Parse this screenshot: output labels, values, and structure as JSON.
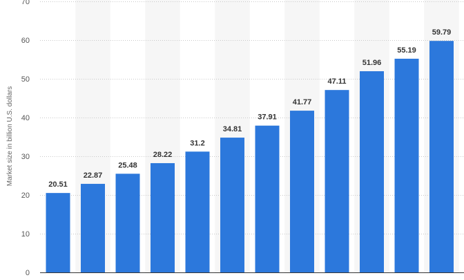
{
  "chart_data": {
    "type": "bar",
    "categories": [
      "",
      "",
      "",
      "",
      "",
      "",
      "",
      "",
      "",
      "",
      "",
      ""
    ],
    "values": [
      20.51,
      22.87,
      25.48,
      28.22,
      31.2,
      34.81,
      37.91,
      41.77,
      47.11,
      51.96,
      55.19,
      59.79
    ],
    "value_labels": [
      "20.51",
      "22.87",
      "25.48",
      "28.22",
      "31.2",
      "34.81",
      "37.91",
      "41.77",
      "47.11",
      "51.96",
      "55.19",
      "59.79"
    ],
    "title": "",
    "xlabel": "",
    "ylabel": "Market size in billion U.S. dollars",
    "ylim": [
      0,
      70
    ],
    "yticks": [
      0,
      10,
      20,
      30,
      40,
      50,
      60,
      70
    ],
    "ytick_labels": [
      "0",
      "10",
      "20",
      "30",
      "40",
      "50",
      "60",
      "70"
    ],
    "grid": true,
    "bar_color": "#2c78dc",
    "band_color": "#f6f6f6"
  }
}
